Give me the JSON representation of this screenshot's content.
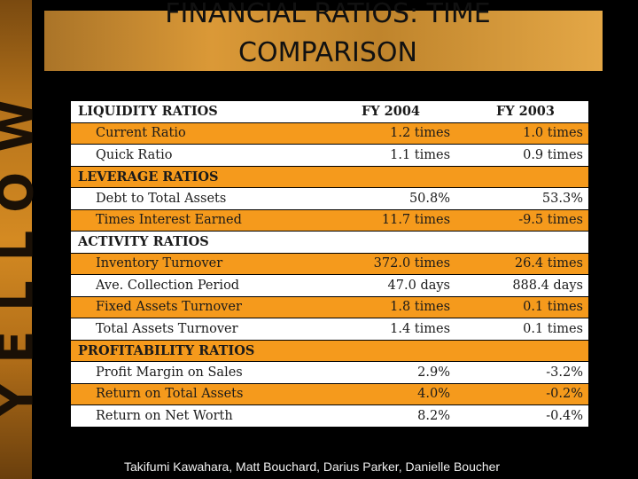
{
  "slide": {
    "side_word": "YELLOW",
    "title": "FINANCIAL RATIOS: TIME COMPARISON",
    "footer": "Takifumi Kawahara,  Matt Bouchard, Darius Parker, Danielle Boucher"
  },
  "table": {
    "header": {
      "label": "LIQUIDITY RATIOS",
      "fy2004": "FY 2004",
      "fy2003": "FY 2003"
    },
    "rows": [
      {
        "label": "Current Ratio",
        "fy2004": "1.2 times",
        "fy2003": "1.0 times"
      },
      {
        "label": "Quick Ratio",
        "fy2004": "1.1 times",
        "fy2003": "0.9 times"
      },
      {
        "label": "LEVERAGE RATIOS",
        "fy2004": "",
        "fy2003": ""
      },
      {
        "label": "Debt to Total Assets",
        "fy2004": "50.8%",
        "fy2003": "53.3%"
      },
      {
        "label": "Times Interest Earned",
        "fy2004": "11.7 times",
        "fy2003": "-9.5 times"
      },
      {
        "label": "ACTIVITY RATIOS",
        "fy2004": "",
        "fy2003": ""
      },
      {
        "label": "Inventory Turnover",
        "fy2004": "372.0 times",
        "fy2003": "26.4 times"
      },
      {
        "label": "Ave. Collection Period",
        "fy2004": "47.0 days",
        "fy2003": "888.4 days"
      },
      {
        "label": "Fixed Assets Turnover",
        "fy2004": "1.8 times",
        "fy2003": "0.1 times"
      },
      {
        "label": "Total Assets Turnover",
        "fy2004": "1.4 times",
        "fy2003": "0.1 times"
      },
      {
        "label": "PROFITABILITY RATIOS",
        "fy2004": "",
        "fy2003": ""
      },
      {
        "label": "Profit Margin on Sales",
        "fy2004": "2.9%",
        "fy2003": "-3.2%"
      },
      {
        "label": "Return on Total Assets",
        "fy2004": "4.0%",
        "fy2003": "-0.2%"
      },
      {
        "label": "Return on Net Worth",
        "fy2004": "8.2%",
        "fy2003": "-0.4%"
      }
    ]
  },
  "colors": {
    "orange": "#f59a1c",
    "light": "#ffffff",
    "background": "#000000"
  }
}
